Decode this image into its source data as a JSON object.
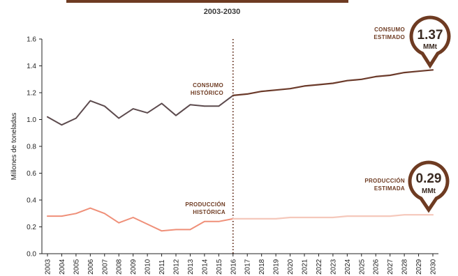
{
  "header": {
    "subtitle": "2003-2030"
  },
  "colors": {
    "consumo_hist": "#5c4a4d",
    "consumo_est": "#6b3a2a",
    "produccion_hist": "#ef8f78",
    "produccion_est": "#f5c8bb",
    "divider": "#6b3a2a",
    "bubble": "#6e3b22",
    "title_bar": "#6e3b22",
    "axis": "#222222"
  },
  "annotations": {
    "consumo_hist_1": "CONSUMO",
    "consumo_hist_2": "HISTÓRICO",
    "consumo_est_1": "CONSUMO",
    "consumo_est_2": "ESTIMADO",
    "produccion_hist_1": "PRODUCCIÓN",
    "produccion_hist_2": "HISTÓRICA",
    "produccion_est_1": "PRODUCCIÓN",
    "produccion_est_2": "ESTIMADA"
  },
  "bubbles": {
    "consumo": {
      "value": "1.37",
      "unit": "MMt"
    },
    "produccion": {
      "value": "0.29",
      "unit": "MMt"
    }
  },
  "chart_data": {
    "type": "line",
    "title": "",
    "subtitle": "2003-2030",
    "xlabel": "",
    "ylabel": "Millones de toneladas",
    "ylim": [
      0.0,
      1.6
    ],
    "yticks": [
      "0.0",
      "0.2",
      "0.4",
      "0.6",
      "0.8",
      "1.0",
      "1.2",
      "1.4",
      "1.6"
    ],
    "x": [
      2003,
      2004,
      2005,
      2006,
      2007,
      2008,
      2009,
      2010,
      2011,
      2012,
      2013,
      2014,
      2015,
      2016,
      2017,
      2018,
      2019,
      2020,
      2021,
      2022,
      2023,
      2024,
      2025,
      2026,
      2027,
      2028,
      2029,
      2030
    ],
    "divider_x": 2016,
    "grid": false,
    "series": [
      {
        "key": "consumo_hist",
        "x": [
          2003,
          2004,
          2005,
          2006,
          2007,
          2008,
          2009,
          2010,
          2011,
          2012,
          2013,
          2014,
          2015,
          2016
        ],
        "values": [
          1.02,
          0.96,
          1.01,
          1.14,
          1.1,
          1.01,
          1.08,
          1.05,
          1.12,
          1.03,
          1.11,
          1.1,
          1.1,
          1.18
        ]
      },
      {
        "key": "consumo_est",
        "x": [
          2016,
          2017,
          2018,
          2019,
          2020,
          2021,
          2022,
          2023,
          2024,
          2025,
          2026,
          2027,
          2028,
          2029,
          2030
        ],
        "values": [
          1.18,
          1.19,
          1.21,
          1.22,
          1.23,
          1.25,
          1.26,
          1.27,
          1.29,
          1.3,
          1.32,
          1.33,
          1.35,
          1.36,
          1.37
        ]
      },
      {
        "key": "produccion_hist",
        "x": [
          2003,
          2004,
          2005,
          2006,
          2007,
          2008,
          2009,
          2010,
          2011,
          2012,
          2013,
          2014,
          2015,
          2016
        ],
        "values": [
          0.28,
          0.28,
          0.3,
          0.34,
          0.3,
          0.23,
          0.27,
          0.22,
          0.17,
          0.18,
          0.18,
          0.24,
          0.24,
          0.26
        ]
      },
      {
        "key": "produccion_est",
        "x": [
          2016,
          2017,
          2018,
          2019,
          2020,
          2021,
          2022,
          2023,
          2024,
          2025,
          2026,
          2027,
          2028,
          2029,
          2030
        ],
        "values": [
          0.26,
          0.26,
          0.26,
          0.26,
          0.27,
          0.27,
          0.27,
          0.27,
          0.28,
          0.28,
          0.28,
          0.28,
          0.29,
          0.29,
          0.29
        ]
      }
    ]
  }
}
